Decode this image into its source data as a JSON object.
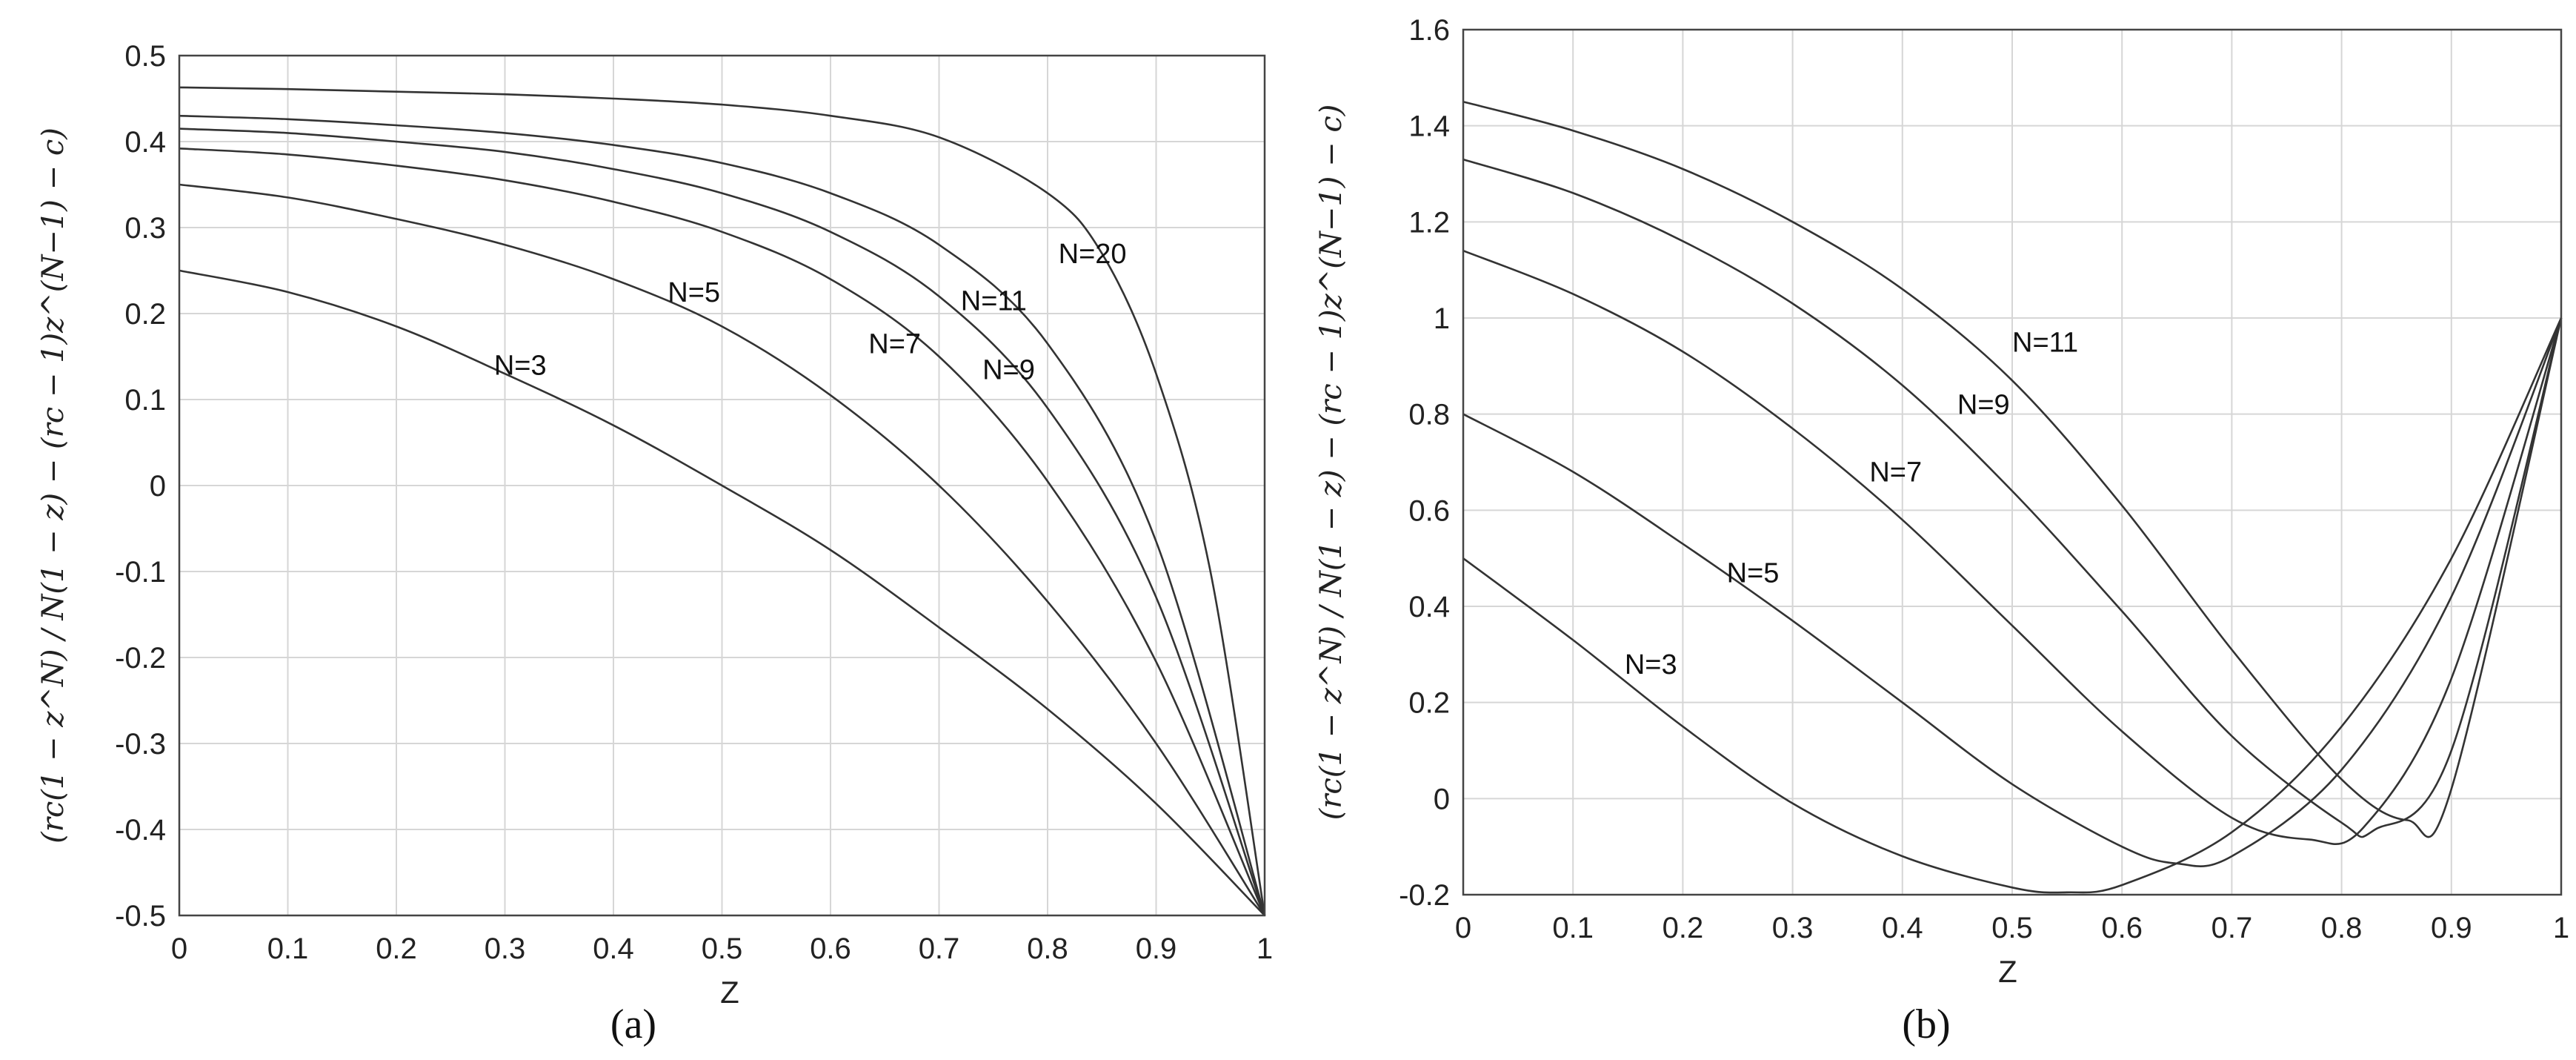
{
  "chart_data": [
    {
      "type": "line",
      "xlabel": "Z",
      "ylabel": "(rc(1 − z^N) / N(1 − z) − (rc − 1)z^(N−1) − c)",
      "caption": "(a)",
      "xlim": [
        0,
        1
      ],
      "ylim": [
        -0.5,
        0.5
      ],
      "xticks": [
        "0",
        "0.1",
        "0.2",
        "0.3",
        "0.4",
        "0.5",
        "0.6",
        "0.7",
        "0.8",
        "0.9",
        "1"
      ],
      "yticks": [
        "0.5",
        "0.4",
        "0.3",
        "0.2",
        "0.1",
        "0",
        "-0.1",
        "-0.2",
        "-0.3",
        "-0.4",
        "-0.5"
      ],
      "grid": true,
      "series": [
        {
          "name": "N=3",
          "label_x": 0.29,
          "label_y": 0.14,
          "x": [
            0,
            0.1,
            0.2,
            0.3,
            0.4,
            0.5,
            0.6,
            0.7,
            0.8,
            0.9,
            1
          ],
          "values": [
            0.25,
            0.225,
            0.185,
            0.13,
            0.07,
            0.0,
            -0.075,
            -0.165,
            -0.26,
            -0.37,
            -0.5
          ]
        },
        {
          "name": "N=5",
          "label_x": 0.45,
          "label_y": 0.225,
          "x": [
            0,
            0.1,
            0.2,
            0.3,
            0.4,
            0.5,
            0.6,
            0.7,
            0.8,
            0.9,
            1
          ],
          "values": [
            0.35,
            0.335,
            0.31,
            0.28,
            0.24,
            0.185,
            0.105,
            0.0,
            -0.135,
            -0.3,
            -0.5
          ]
        },
        {
          "name": "N=7",
          "label_x": 0.635,
          "label_y": 0.165,
          "x": [
            0,
            0.1,
            0.2,
            0.3,
            0.4,
            0.5,
            0.6,
            0.7,
            0.8,
            0.9,
            1
          ],
          "values": [
            0.392,
            0.385,
            0.372,
            0.355,
            0.33,
            0.295,
            0.24,
            0.15,
            0.005,
            -0.205,
            -0.5
          ]
        },
        {
          "name": "N=9",
          "label_x": 0.74,
          "label_y": 0.135,
          "x": [
            0,
            0.1,
            0.2,
            0.3,
            0.4,
            0.5,
            0.6,
            0.7,
            0.8,
            0.9,
            1
          ],
          "values": [
            0.415,
            0.41,
            0.4,
            0.388,
            0.368,
            0.34,
            0.295,
            0.22,
            0.09,
            -0.13,
            -0.5
          ]
        },
        {
          "name": "N=11",
          "label_x": 0.72,
          "label_y": 0.215,
          "x": [
            0,
            0.1,
            0.2,
            0.3,
            0.4,
            0.5,
            0.6,
            0.7,
            0.8,
            0.9,
            1
          ],
          "values": [
            0.43,
            0.426,
            0.419,
            0.41,
            0.396,
            0.375,
            0.34,
            0.28,
            0.165,
            -0.065,
            -0.5
          ]
        },
        {
          "name": "N=20",
          "label_x": 0.81,
          "label_y": 0.27,
          "x": [
            0,
            0.1,
            0.2,
            0.3,
            0.4,
            0.5,
            0.6,
            0.7,
            0.8,
            0.85,
            0.9,
            0.95,
            1
          ],
          "values": [
            0.463,
            0.461,
            0.458,
            0.455,
            0.45,
            0.443,
            0.43,
            0.405,
            0.34,
            0.27,
            0.13,
            -0.1,
            -0.5
          ]
        }
      ]
    },
    {
      "type": "line",
      "xlabel": "Z",
      "ylabel": "(rc(1 − z^N) / N(1 − z) − (rc − 1)z^(N−1) − c)",
      "caption": "(b)",
      "xlim": [
        0,
        1
      ],
      "ylim": [
        -0.2,
        1.6
      ],
      "xticks": [
        "0",
        "0.1",
        "0.2",
        "0.3",
        "0.4",
        "0.5",
        "0.6",
        "0.7",
        "0.8",
        "0.9",
        "1"
      ],
      "yticks": [
        "1.6",
        "1.4",
        "1.2",
        "1",
        "0.8",
        "0.6",
        "0.4",
        "0.2",
        "0",
        "-0.2"
      ],
      "grid": true,
      "series": [
        {
          "name": "N=3",
          "label_x": 0.147,
          "label_y": 0.28,
          "x": [
            0,
            0.1,
            0.2,
            0.3,
            0.4,
            0.5,
            0.55,
            0.6,
            0.7,
            0.8,
            0.9,
            1
          ],
          "values": [
            0.5,
            0.33,
            0.15,
            -0.01,
            -0.12,
            -0.185,
            -0.195,
            -0.18,
            -0.07,
            0.15,
            0.5,
            1.0
          ]
        },
        {
          "name": "N=5",
          "label_x": 0.24,
          "label_y": 0.47,
          "x": [
            0,
            0.1,
            0.2,
            0.3,
            0.4,
            0.5,
            0.6,
            0.65,
            0.7,
            0.8,
            0.9,
            1
          ],
          "values": [
            0.8,
            0.68,
            0.53,
            0.37,
            0.2,
            0.03,
            -0.1,
            -0.135,
            -0.12,
            0.06,
            0.42,
            1.0
          ]
        },
        {
          "name": "N=7",
          "label_x": 0.37,
          "label_y": 0.68,
          "x": [
            0,
            0.1,
            0.2,
            0.3,
            0.4,
            0.5,
            0.6,
            0.7,
            0.77,
            0.82,
            0.9,
            1
          ],
          "values": [
            1.14,
            1.05,
            0.93,
            0.77,
            0.58,
            0.36,
            0.14,
            -0.04,
            -0.085,
            -0.06,
            0.25,
            1.0
          ]
        },
        {
          "name": "N=9",
          "label_x": 0.45,
          "label_y": 0.82,
          "x": [
            0,
            0.1,
            0.2,
            0.3,
            0.4,
            0.5,
            0.6,
            0.7,
            0.8,
            0.83,
            0.9,
            1
          ],
          "values": [
            1.33,
            1.26,
            1.16,
            1.03,
            0.86,
            0.64,
            0.39,
            0.13,
            -0.05,
            -0.065,
            0.1,
            1.0
          ]
        },
        {
          "name": "N=11",
          "label_x": 0.5,
          "label_y": 0.95,
          "x": [
            0,
            0.1,
            0.2,
            0.3,
            0.4,
            0.5,
            0.6,
            0.7,
            0.8,
            0.86,
            0.9,
            1
          ],
          "values": [
            1.45,
            1.39,
            1.31,
            1.2,
            1.06,
            0.87,
            0.61,
            0.31,
            0.04,
            -0.045,
            0.02,
            1.0
          ]
        }
      ]
    }
  ]
}
